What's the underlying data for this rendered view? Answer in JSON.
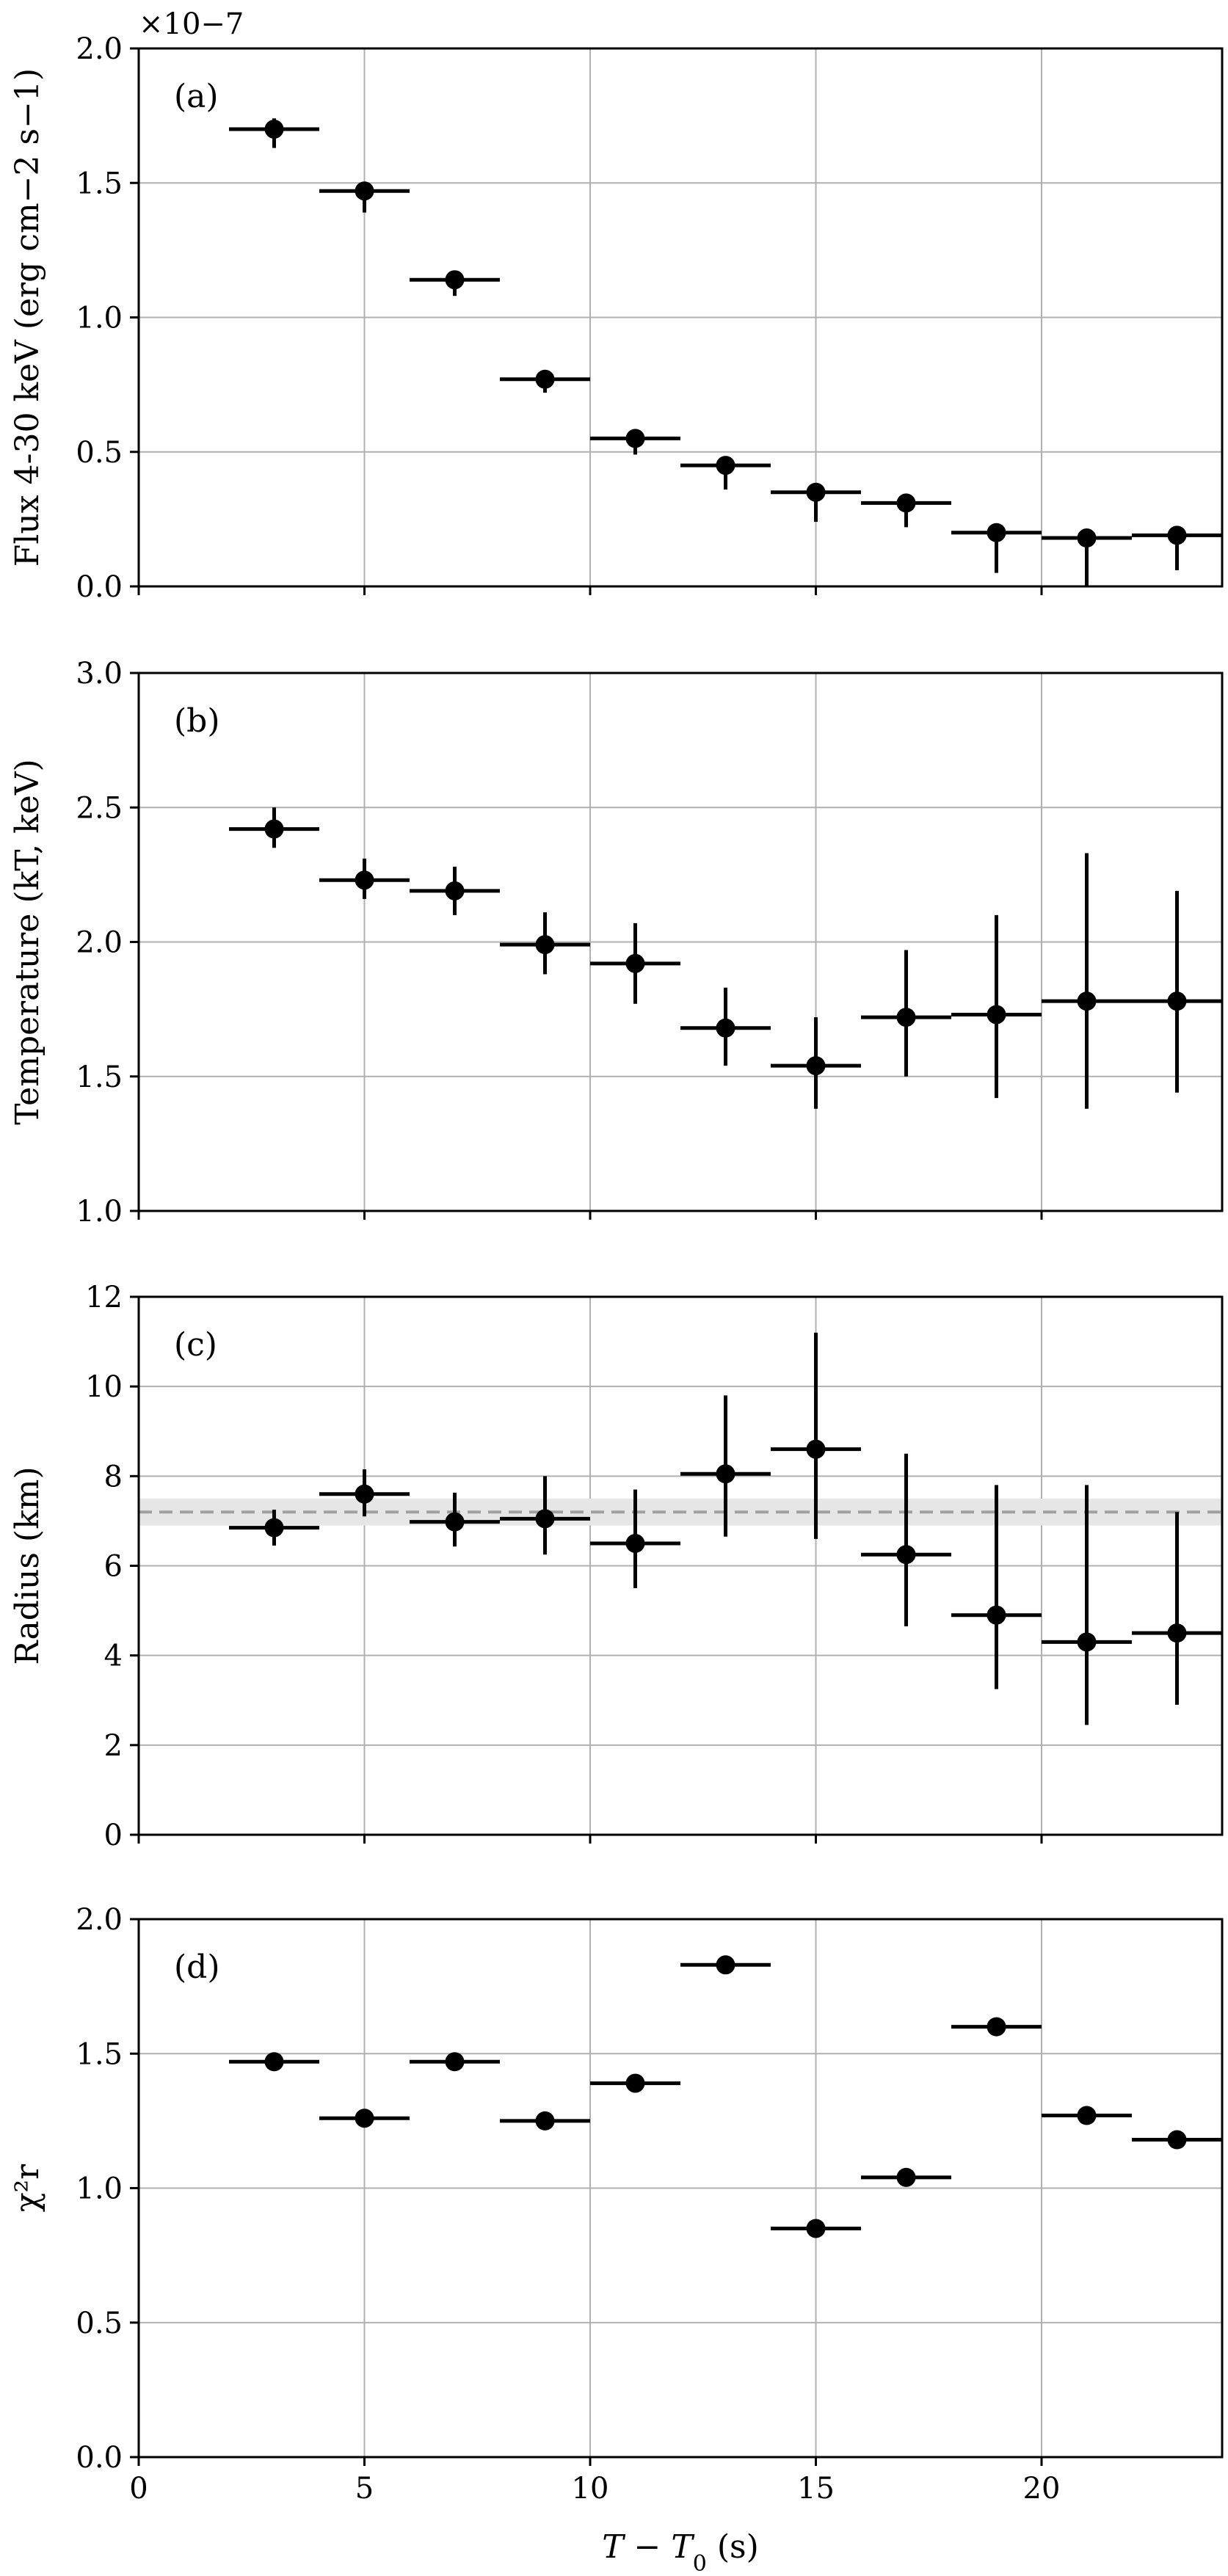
{
  "figure": {
    "xlabel": "T − T0 (s)",
    "xlabel_main": "T − T",
    "xlabel_sub": "0",
    "xlabel_unit": " (s)"
  },
  "chart_data": [
    {
      "type": "scatter",
      "panel_label": "(a)",
      "ylabel": "Flux 4-30 keV (erg cm−2 s−1)",
      "y_offset_label": "×10−7",
      "ylim": [
        0.0,
        2.0
      ],
      "xlim": [
        0,
        24
      ],
      "yticks": [
        0.0,
        0.5,
        1.0,
        1.5,
        2.0
      ],
      "ytick_labels": [
        "0.0",
        "0.5",
        "1.0",
        "1.5",
        "2.0"
      ],
      "xticks": [
        0,
        5,
        10,
        15,
        20
      ],
      "grid": true,
      "series": [
        {
          "x": [
            3,
            5,
            7,
            9,
            11,
            13,
            15,
            17,
            19,
            21,
            23
          ],
          "x_err": 1,
          "y": [
            1.7,
            1.47,
            1.14,
            0.77,
            0.55,
            0.45,
            0.35,
            0.31,
            0.2,
            0.18,
            0.19
          ],
          "y_err_low": [
            0.07,
            0.08,
            0.06,
            0.05,
            0.06,
            0.09,
            0.11,
            0.09,
            0.15,
            0.18,
            0.13
          ],
          "y_err_high": [
            0.04,
            0.03,
            0.03,
            0.03,
            0.03,
            0.03,
            0.02,
            0.03,
            0.01,
            0.0,
            0.01
          ]
        }
      ]
    },
    {
      "type": "scatter",
      "panel_label": "(b)",
      "ylabel": "Temperature (kT, keV)",
      "ylim": [
        1.0,
        3.0
      ],
      "xlim": [
        0,
        24
      ],
      "yticks": [
        1.0,
        1.5,
        2.0,
        2.5,
        3.0
      ],
      "ytick_labels": [
        "1.0",
        "1.5",
        "2.0",
        "2.5",
        "3.0"
      ],
      "xticks": [
        0,
        5,
        10,
        15,
        20
      ],
      "grid": true,
      "series": [
        {
          "x": [
            3,
            5,
            7,
            9,
            11,
            13,
            15,
            17,
            19,
            21,
            23
          ],
          "x_err": 1,
          "y": [
            2.42,
            2.23,
            2.19,
            1.99,
            1.92,
            1.68,
            1.54,
            1.72,
            1.73,
            1.78,
            1.78
          ],
          "y_err_low": [
            0.07,
            0.07,
            0.09,
            0.11,
            0.15,
            0.14,
            0.16,
            0.22,
            0.31,
            0.4,
            0.34
          ],
          "y_err_high": [
            0.08,
            0.08,
            0.09,
            0.12,
            0.15,
            0.15,
            0.18,
            0.25,
            0.37,
            0.55,
            0.41
          ]
        }
      ]
    },
    {
      "type": "scatter",
      "panel_label": "(c)",
      "ylabel": "Radius (km)",
      "ylim": [
        0,
        12
      ],
      "xlim": [
        0,
        24
      ],
      "yticks": [
        0,
        2,
        4,
        6,
        8,
        10,
        12
      ],
      "ytick_labels": [
        "0",
        "2",
        "4",
        "6",
        "8",
        "10",
        "12"
      ],
      "xticks": [
        0,
        5,
        10,
        15,
        20
      ],
      "grid": true,
      "reference_line": {
        "y": 7.2,
        "band_low": 6.9,
        "band_high": 7.5
      },
      "series": [
        {
          "x": [
            3,
            5,
            7,
            9,
            11,
            13,
            15,
            17,
            19,
            21,
            23
          ],
          "x_err": 1,
          "y": [
            6.85,
            7.6,
            6.98,
            7.05,
            6.5,
            8.05,
            8.6,
            6.25,
            4.9,
            4.3,
            4.5
          ],
          "y_err_low": [
            0.4,
            0.5,
            0.55,
            0.8,
            1.0,
            1.4,
            2.0,
            1.6,
            1.65,
            1.85,
            1.6
          ],
          "y_err_high": [
            0.4,
            0.55,
            0.65,
            0.95,
            1.2,
            1.75,
            2.6,
            2.25,
            2.9,
            3.5,
            2.7
          ]
        }
      ]
    },
    {
      "type": "scatter",
      "panel_label": "(d)",
      "ylabel": "χ²r",
      "ylim": [
        0.0,
        2.0
      ],
      "xlim": [
        0,
        24
      ],
      "yticks": [
        0.0,
        0.5,
        1.0,
        1.5,
        2.0
      ],
      "ytick_labels": [
        "0.0",
        "0.5",
        "1.0",
        "1.5",
        "2.0"
      ],
      "xticks": [
        0,
        5,
        10,
        15,
        20
      ],
      "xtick_labels": [
        "0",
        "5",
        "10",
        "15",
        "20"
      ],
      "grid": true,
      "series": [
        {
          "x": [
            3,
            5,
            7,
            9,
            11,
            13,
            15,
            17,
            19,
            21,
            23
          ],
          "x_err": 1,
          "y": [
            1.47,
            1.26,
            1.47,
            1.25,
            1.39,
            1.83,
            0.85,
            1.04,
            1.6,
            1.27,
            1.18
          ]
        }
      ]
    }
  ]
}
